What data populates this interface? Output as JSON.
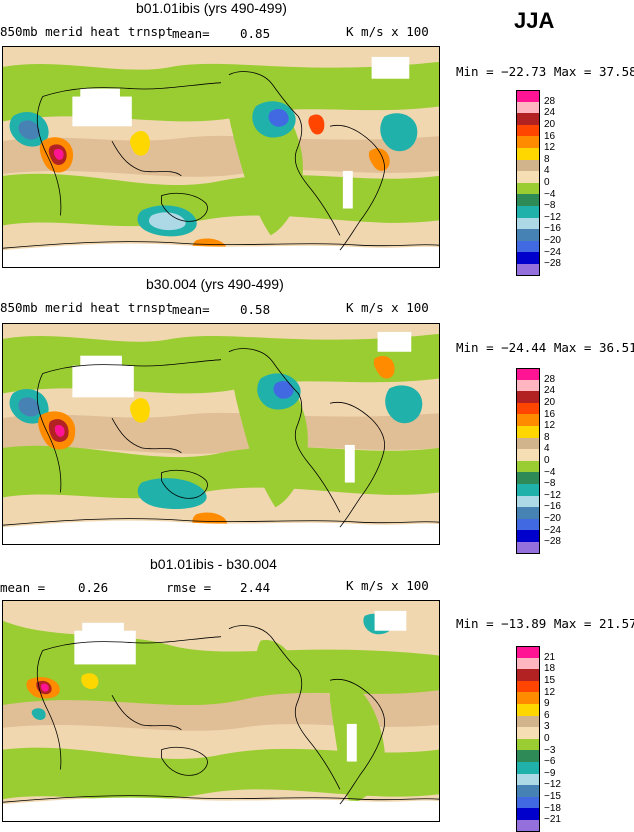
{
  "season": "JJA",
  "panels": [
    {
      "title": "b01.01ibis (yrs 490-499)",
      "field_label": "850mb merid heat trnspt",
      "stat1_label": "mean=",
      "stat1_value": "0.85",
      "stat2_label": "",
      "stat2_value": "",
      "units": "K m/s x 100",
      "minmax": "Min = −22.73  Max =  37.58",
      "legend": {
        "labels": [
          "28",
          "24",
          "20",
          "16",
          "12",
          "8",
          "4",
          "0",
          "−4",
          "−8",
          "−12",
          "−16",
          "−20",
          "−24",
          "−28"
        ],
        "colors": [
          "#ff1493",
          "#ffb6c1",
          "#b22222",
          "#ff4500",
          "#ff8c00",
          "#ffd700",
          "#d2b48c",
          "#f5deb3",
          "#9acd32",
          "#2e8b57",
          "#20b2aa",
          "#add8e6",
          "#4682b4",
          "#4169e1",
          "#0000cd",
          "#9370db"
        ]
      }
    },
    {
      "title": "b30.004 (yrs 490-499)",
      "field_label": "850mb merid heat trnspt",
      "stat1_label": "mean=",
      "stat1_value": "0.58",
      "stat2_label": "",
      "stat2_value": "",
      "units": "K m/s x 100",
      "minmax": "Min = −24.44  Max =  36.51",
      "legend": {
        "labels": [
          "28",
          "24",
          "20",
          "16",
          "12",
          "8",
          "4",
          "0",
          "−4",
          "−8",
          "−12",
          "−16",
          "−20",
          "−24",
          "−28"
        ],
        "colors": [
          "#ff1493",
          "#ffb6c1",
          "#b22222",
          "#ff4500",
          "#ff8c00",
          "#ffd700",
          "#d2b48c",
          "#f5deb3",
          "#9acd32",
          "#2e8b57",
          "#20b2aa",
          "#add8e6",
          "#4682b4",
          "#4169e1",
          "#0000cd",
          "#9370db"
        ]
      }
    },
    {
      "title": "b01.01ibis - b30.004",
      "field_label": "",
      "stat1_label": "mean =",
      "stat1_value": "0.26",
      "stat2_label": "rmse =",
      "stat2_value": "2.44",
      "units": "K m/s x 100",
      "minmax": "Min = −13.89  Max =  21.57",
      "legend": {
        "labels": [
          "21",
          "18",
          "15",
          "12",
          "9",
          "6",
          "3",
          "0",
          "−3",
          "−6",
          "−9",
          "−12",
          "−15",
          "−18",
          "−21"
        ],
        "colors": [
          "#ff1493",
          "#ffb6c1",
          "#b22222",
          "#ff4500",
          "#ff8c00",
          "#ffd700",
          "#d2b48c",
          "#f5deb3",
          "#9acd32",
          "#2e8b57",
          "#20b2aa",
          "#add8e6",
          "#4682b4",
          "#4169e1",
          "#0000cd",
          "#9370db"
        ]
      }
    }
  ]
}
